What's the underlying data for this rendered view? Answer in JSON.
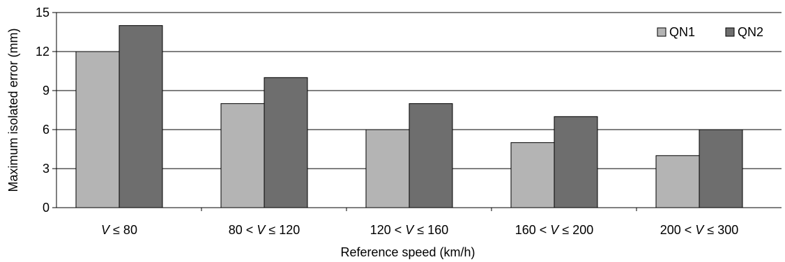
{
  "chart_data": {
    "type": "bar",
    "categories": [
      [
        "V",
        " ≤  80"
      ],
      [
        "80 < ",
        "V",
        " ≤ 120"
      ],
      [
        "120 < ",
        "V",
        " ≤ 160"
      ],
      [
        "160 < ",
        "V",
        " ≤ 200"
      ],
      [
        "200 < ",
        "V",
        " ≤ 300"
      ]
    ],
    "series": [
      {
        "name": "QN1",
        "values": [
          12,
          8,
          6,
          5,
          4
        ],
        "color": "#b4b4b4"
      },
      {
        "name": "QN2",
        "values": [
          14,
          10,
          8,
          7,
          6
        ],
        "color": "#6e6e6e"
      }
    ],
    "xlabel": "Reference speed (km/h)",
    "ylabel": "Maximum isolated error (mm)",
    "ylim": [
      0,
      15
    ],
    "yticks": [
      0,
      3,
      6,
      9,
      12,
      15
    ],
    "grid": true,
    "legend_position": "top-right"
  }
}
